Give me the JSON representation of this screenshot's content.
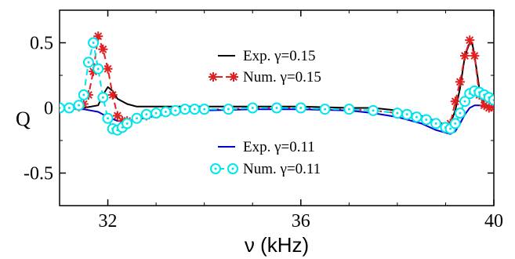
{
  "chart_data": {
    "type": "line",
    "xlabel": "ν (kHz)",
    "ylabel": "Q",
    "xlim": [
      31.0,
      40.0
    ],
    "ylim": [
      -0.75,
      0.75
    ],
    "x_ticks": [
      32,
      36,
      40
    ],
    "y_ticks": [
      0.5,
      0,
      -0.5
    ],
    "x_tick_labels": [
      "32",
      "36",
      "40"
    ],
    "y_tick_labels": [
      "0.5",
      "0",
      "-0.5"
    ],
    "grid": false,
    "legend_upper": [
      "Exp.  γ=0.15",
      "Num. γ=0.15"
    ],
    "legend_lower": [
      "Exp.  γ=0.11",
      "Num. γ=0.11"
    ],
    "colors": {
      "exp_015": "#000000",
      "num_015": "#e02020",
      "exp_011": "#0000cc",
      "num_011": "#00e5ee"
    },
    "series": [
      {
        "name": "Exp.  γ=0.15",
        "style": "solid",
        "color": "#000000",
        "x": [
          31.0,
          31.5,
          31.8,
          31.9,
          32.0,
          32.1,
          32.2,
          32.4,
          32.6,
          33.0,
          34.0,
          35.0,
          36.0,
          37.0,
          37.5,
          38.0,
          38.5,
          39.0,
          39.1,
          39.2,
          39.3,
          39.4,
          39.5,
          39.55,
          39.6,
          39.7,
          39.8,
          40.0
        ],
        "y": [
          0.0,
          0.0,
          0.02,
          0.1,
          0.16,
          0.13,
          0.07,
          0.03,
          0.01,
          0.01,
          0.01,
          0.01,
          0.01,
          0.0,
          0.0,
          -0.02,
          -0.06,
          -0.13,
          -0.12,
          -0.02,
          0.15,
          0.4,
          0.5,
          0.5,
          0.4,
          0.15,
          0.03,
          0.0
        ]
      },
      {
        "name": "Num. γ=0.15",
        "style": "dashed",
        "marker": "asterisk",
        "color": "#e02020",
        "x": [
          31.0,
          31.2,
          31.4,
          31.5,
          31.6,
          31.7,
          31.8,
          31.9,
          32.0,
          32.1,
          32.2,
          32.3,
          32.4,
          32.6,
          32.8,
          33.0,
          33.2,
          33.4,
          33.6,
          33.8,
          34.0,
          34.5,
          35.0,
          35.5,
          36.0,
          36.5,
          37.0,
          37.5,
          38.0,
          38.2,
          38.4,
          38.6,
          38.8,
          39.0,
          39.1,
          39.2,
          39.3,
          39.4,
          39.5,
          39.6,
          39.7,
          39.8,
          39.9,
          40.0
        ],
        "y": [
          0.0,
          0.0,
          0.01,
          0.03,
          0.1,
          0.28,
          0.55,
          0.45,
          0.3,
          0.1,
          -0.06,
          -0.1,
          -0.1,
          -0.08,
          -0.06,
          -0.04,
          -0.03,
          -0.02,
          -0.01,
          -0.01,
          -0.01,
          -0.01,
          0.0,
          0.0,
          0.0,
          -0.01,
          -0.01,
          -0.02,
          -0.04,
          -0.05,
          -0.07,
          -0.09,
          -0.12,
          -0.15,
          -0.12,
          0.05,
          0.2,
          0.4,
          0.52,
          0.4,
          0.1,
          0.02,
          0.0,
          0.0
        ]
      },
      {
        "name": "Exp.  γ=0.11",
        "style": "solid",
        "color": "#0000cc",
        "x": [
          31.0,
          31.5,
          31.8,
          32.0,
          32.2,
          32.4,
          32.6,
          33.0,
          33.5,
          34.0,
          35.0,
          36.0,
          37.0,
          37.5,
          38.0,
          38.5,
          38.8,
          39.0,
          39.1,
          39.2,
          39.3,
          39.4,
          39.5,
          39.6,
          39.7,
          39.8,
          40.0
        ],
        "y": [
          0.0,
          -0.01,
          -0.03,
          -0.07,
          -0.1,
          -0.1,
          -0.09,
          -0.06,
          -0.03,
          -0.02,
          -0.01,
          -0.01,
          -0.02,
          -0.04,
          -0.07,
          -0.12,
          -0.17,
          -0.19,
          -0.2,
          -0.18,
          -0.12,
          -0.05,
          0.0,
          0.02,
          0.02,
          0.01,
          0.0
        ]
      },
      {
        "name": "Num. γ=0.11",
        "style": "dashed",
        "marker": "circle",
        "color": "#00e5ee",
        "x": [
          31.0,
          31.2,
          31.4,
          31.5,
          31.6,
          31.7,
          31.8,
          31.9,
          32.0,
          32.1,
          32.2,
          32.3,
          32.4,
          32.6,
          32.8,
          33.0,
          33.2,
          33.4,
          33.6,
          33.8,
          34.0,
          34.5,
          35.0,
          35.5,
          36.0,
          36.5,
          37.0,
          37.5,
          38.0,
          38.2,
          38.4,
          38.6,
          38.8,
          39.0,
          39.1,
          39.2,
          39.3,
          39.4,
          39.5,
          39.6,
          39.7,
          39.8,
          39.9,
          40.0
        ],
        "y": [
          0.0,
          0.0,
          0.02,
          0.1,
          0.35,
          0.5,
          0.3,
          0.08,
          -0.08,
          -0.16,
          -0.17,
          -0.15,
          -0.12,
          -0.08,
          -0.05,
          -0.04,
          -0.03,
          -0.02,
          -0.01,
          -0.01,
          -0.01,
          -0.01,
          0.0,
          0.0,
          0.0,
          -0.01,
          -0.01,
          -0.02,
          -0.04,
          -0.05,
          -0.07,
          -0.09,
          -0.12,
          -0.15,
          -0.16,
          -0.12,
          -0.04,
          0.05,
          0.11,
          0.13,
          0.12,
          0.1,
          0.08,
          0.06
        ]
      }
    ]
  }
}
